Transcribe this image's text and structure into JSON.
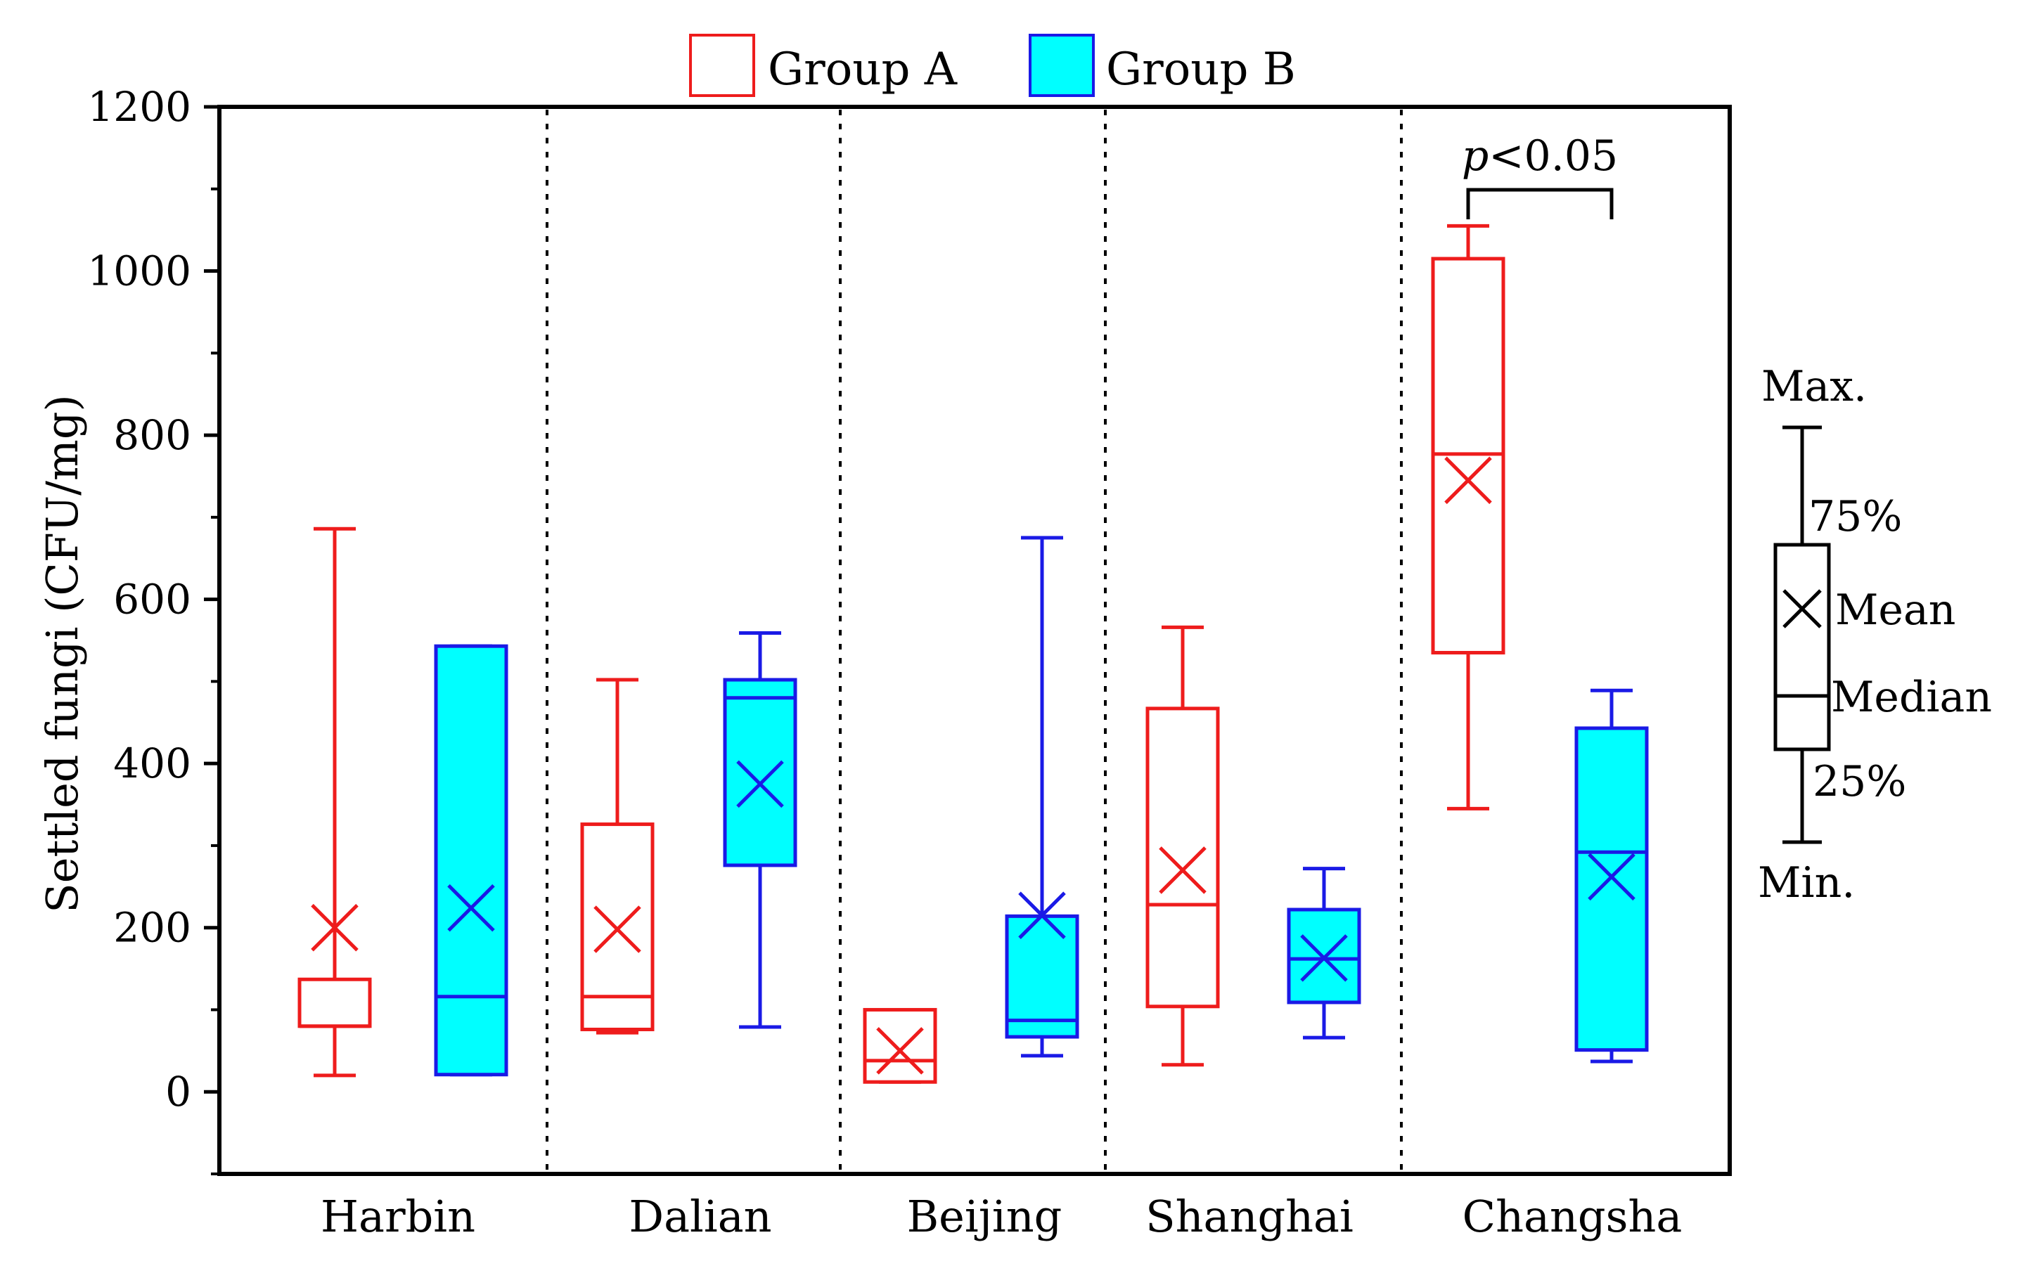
{
  "chart_data": {
    "type": "boxplot",
    "title": "",
    "xlabel": "",
    "ylabel": "Settled fungi (CFU/mg)",
    "ylim": [
      -100,
      1200
    ],
    "yticks": [
      0,
      200,
      400,
      600,
      800,
      1000,
      1200
    ],
    "categories": [
      "Harbin",
      "Dalian",
      "Beijing",
      "Shanghai",
      "Changsha"
    ],
    "legend": {
      "position": "top-center",
      "entries": [
        "Group A",
        "Group B"
      ]
    },
    "colors": {
      "Group A": "#ee1c1c",
      "Group B": "#1a1ae6",
      "Group B fill": "#00ffff"
    },
    "series": [
      {
        "name": "Group A",
        "boxes": [
          {
            "min": 20,
            "q1": 80,
            "median": 80,
            "q3": 137,
            "max": 686,
            "mean": 200
          },
          {
            "min": 72,
            "q1": 76,
            "median": 116,
            "q3": 326,
            "max": 502,
            "mean": 198
          },
          {
            "min": 12,
            "q1": 12,
            "median": 38,
            "q3": 100,
            "max": 100,
            "mean": 50
          },
          {
            "min": 33,
            "q1": 104,
            "median": 228,
            "q3": 467,
            "max": 566,
            "mean": 270
          },
          {
            "min": 345,
            "q1": 535,
            "median": 777,
            "q3": 1015,
            "max": 1055,
            "mean": 745
          }
        ]
      },
      {
        "name": "Group B",
        "boxes": [
          {
            "min": 21,
            "q1": 21,
            "median": 116,
            "q3": 543,
            "max": 543,
            "mean": 224
          },
          {
            "min": 79,
            "q1": 276,
            "median": 480,
            "q3": 502,
            "max": 559,
            "mean": 375
          },
          {
            "min": 44,
            "q1": 67,
            "median": 87,
            "q3": 214,
            "max": 675,
            "mean": 215
          },
          {
            "min": 66,
            "q1": 109,
            "median": 162,
            "q3": 222,
            "max": 272,
            "mean": 163
          },
          {
            "min": 37,
            "q1": 51,
            "median": 292,
            "q3": 443,
            "max": 489,
            "mean": 262
          }
        ]
      }
    ],
    "annotation": {
      "text_italic": "p",
      "text_rest": "<0.05",
      "between": [
        "Changsha Group A",
        "Changsha Group B"
      ]
    },
    "key": {
      "labels": {
        "max": "Max.",
        "q3": "75%",
        "mean": "Mean",
        "median": "Median",
        "q1": "25%",
        "min": "Min."
      }
    }
  }
}
